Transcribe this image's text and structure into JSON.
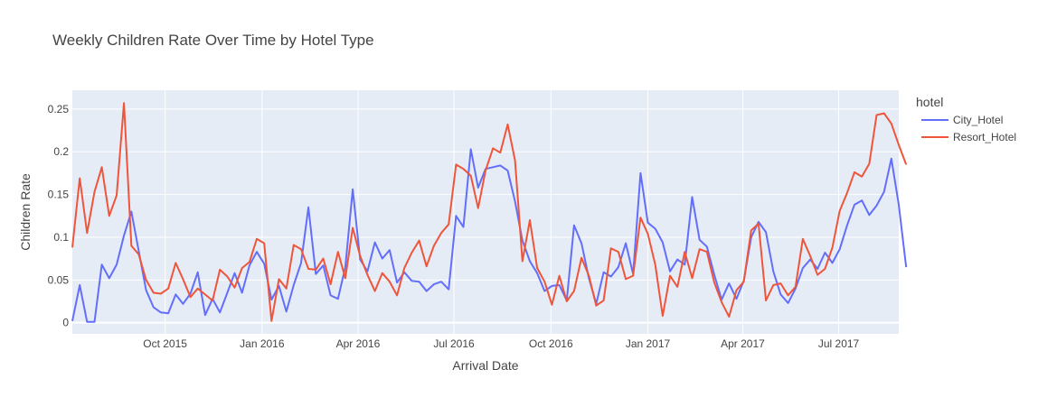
{
  "chart_data": {
    "type": "line",
    "title": "Weekly Children Rate Over Time by Hotel Type",
    "xlabel": "Arrival Date",
    "ylabel": "Children Rate",
    "x_start": "2015-07-05",
    "x_step_days": 7,
    "xlim": [
      "2015-07-05",
      "2017-08-27"
    ],
    "ylim": [
      -0.013,
      0.272
    ],
    "x_ticks": [
      {
        "date": "2015-10-01",
        "label": "Oct 2015"
      },
      {
        "date": "2016-01-01",
        "label": "Jan 2016"
      },
      {
        "date": "2016-04-01",
        "label": "Apr 2016"
      },
      {
        "date": "2016-07-01",
        "label": "Jul 2016"
      },
      {
        "date": "2016-10-01",
        "label": "Oct 2016"
      },
      {
        "date": "2017-01-01",
        "label": "Jan 2017"
      },
      {
        "date": "2017-04-01",
        "label": "Apr 2017"
      },
      {
        "date": "2017-07-01",
        "label": "Jul 2017"
      }
    ],
    "y_ticks": [
      {
        "value": 0,
        "label": "0"
      },
      {
        "value": 0.05,
        "label": "0.05"
      },
      {
        "value": 0.1,
        "label": "0.1"
      },
      {
        "value": 0.15,
        "label": "0.15"
      },
      {
        "value": 0.2,
        "label": "0.2"
      },
      {
        "value": 0.25,
        "label": "0.25"
      }
    ],
    "grid": true,
    "legend": {
      "title": "hotel",
      "placement": "top-right"
    },
    "series": [
      {
        "name": "City_Hotel",
        "color": "#636efa",
        "values": [
          0.002,
          0.044,
          0.001,
          0.001,
          0.068,
          0.052,
          0.068,
          0.102,
          0.13,
          0.084,
          0.038,
          0.018,
          0.012,
          0.011,
          0.033,
          0.022,
          0.034,
          0.059,
          0.009,
          0.028,
          0.012,
          0.035,
          0.058,
          0.035,
          0.067,
          0.083,
          0.069,
          0.027,
          0.043,
          0.013,
          0.044,
          0.07,
          0.135,
          0.057,
          0.067,
          0.032,
          0.028,
          0.065,
          0.156,
          0.074,
          0.06,
          0.094,
          0.075,
          0.085,
          0.047,
          0.059,
          0.049,
          0.048,
          0.037,
          0.045,
          0.048,
          0.039,
          0.125,
          0.112,
          0.203,
          0.158,
          0.18,
          0.182,
          0.184,
          0.178,
          0.142,
          0.096,
          0.072,
          0.058,
          0.037,
          0.043,
          0.044,
          0.026,
          0.114,
          0.093,
          0.052,
          0.022,
          0.059,
          0.054,
          0.065,
          0.093,
          0.057,
          0.175,
          0.117,
          0.11,
          0.094,
          0.06,
          0.074,
          0.068,
          0.147,
          0.097,
          0.089,
          0.056,
          0.027,
          0.046,
          0.028,
          0.049,
          0.1,
          0.118,
          0.106,
          0.06,
          0.033,
          0.023,
          0.04,
          0.064,
          0.074,
          0.063,
          0.082,
          0.07,
          0.086,
          0.114,
          0.138,
          0.143,
          0.126,
          0.137,
          0.153,
          0.192,
          0.138,
          0.065
        ]
      },
      {
        "name": "Resort_Hotel",
        "color": "#ef553b",
        "values": [
          0.088,
          0.169,
          0.105,
          0.153,
          0.182,
          0.125,
          0.149,
          0.257,
          0.09,
          0.08,
          0.05,
          0.035,
          0.034,
          0.04,
          0.07,
          0.051,
          0.03,
          0.04,
          0.033,
          0.026,
          0.062,
          0.054,
          0.041,
          0.064,
          0.071,
          0.098,
          0.093,
          0.002,
          0.051,
          0.04,
          0.091,
          0.086,
          0.063,
          0.062,
          0.075,
          0.045,
          0.083,
          0.052,
          0.111,
          0.078,
          0.056,
          0.037,
          0.058,
          0.048,
          0.032,
          0.064,
          0.082,
          0.096,
          0.066,
          0.09,
          0.105,
          0.115,
          0.185,
          0.18,
          0.172,
          0.134,
          0.178,
          0.204,
          0.199,
          0.232,
          0.19,
          0.072,
          0.12,
          0.064,
          0.048,
          0.021,
          0.055,
          0.025,
          0.037,
          0.076,
          0.055,
          0.02,
          0.026,
          0.087,
          0.083,
          0.051,
          0.055,
          0.123,
          0.104,
          0.068,
          0.008,
          0.055,
          0.042,
          0.083,
          0.052,
          0.086,
          0.083,
          0.047,
          0.024,
          0.007,
          0.038,
          0.048,
          0.108,
          0.116,
          0.026,
          0.044,
          0.046,
          0.032,
          0.042,
          0.098,
          0.078,
          0.056,
          0.063,
          0.088,
          0.131,
          0.152,
          0.176,
          0.171,
          0.186,
          0.243,
          0.245,
          0.233,
          0.208,
          0.185
        ]
      }
    ]
  }
}
